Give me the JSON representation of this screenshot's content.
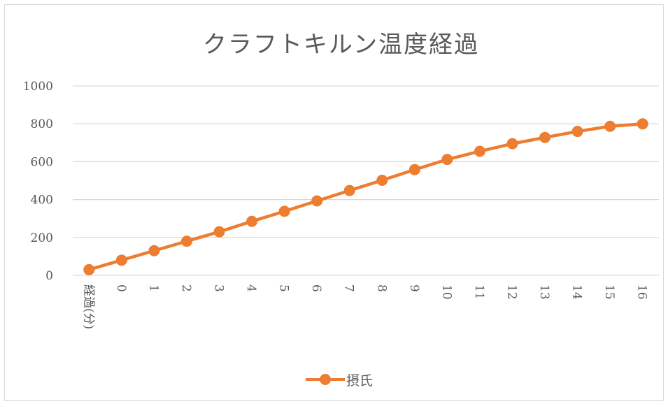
{
  "chart_data": {
    "type": "line",
    "title": "クラフトキルン温度経過",
    "categories": [
      "経過(分)",
      "0",
      "1",
      "2",
      "3",
      "4",
      "5",
      "6",
      "7",
      "8",
      "9",
      "10",
      "11",
      "12",
      "13",
      "14",
      "15",
      "16"
    ],
    "series": [
      {
        "name": "摂氏",
        "values": [
          30,
          80,
          130,
          180,
          230,
          285,
          338,
          393,
          448,
          502,
          558,
          612,
          655,
          695,
          728,
          760,
          787,
          800
        ]
      }
    ],
    "y_ticks": [
      "0",
      "200",
      "400",
      "600",
      "800",
      "1000"
    ],
    "ylim": [
      0,
      1000
    ],
    "grid": true,
    "legend_position": "bottom",
    "series_color": "#ed7d31",
    "grid_color": "#d9d9d9",
    "text_color": "#595959"
  }
}
